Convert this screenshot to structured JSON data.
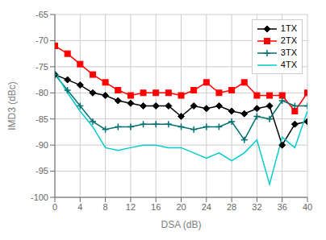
{
  "chart_data": {
    "type": "line",
    "xlabel": "DSA (dB)",
    "ylabel": "IMD3 (dBc)",
    "x": [
      0,
      2,
      4,
      6,
      8,
      10,
      12,
      14,
      16,
      18,
      20,
      22,
      24,
      26,
      28,
      30,
      32,
      34,
      36,
      38,
      40
    ],
    "xlim": [
      0,
      40
    ],
    "ylim": [
      -100,
      -65
    ],
    "xticks": [
      0,
      4,
      8,
      12,
      16,
      20,
      24,
      28,
      32,
      36,
      40
    ],
    "yticks": [
      -100,
      -95,
      -90,
      -85,
      -80,
      -75,
      -70,
      -65
    ],
    "grid": true,
    "legend": "upper right",
    "series": [
      {
        "name": "1TX",
        "color": "#000000",
        "marker": "diamond",
        "values": [
          -76.5,
          -77.5,
          -78.5,
          -80.0,
          -80.5,
          -81.5,
          -82.0,
          -82.5,
          -82.5,
          -82.5,
          -84.5,
          -82.5,
          -83.0,
          -82.5,
          -83.5,
          -84.0,
          -83.0,
          -82.5,
          -90.0,
          -86.0,
          -85.5
        ]
      },
      {
        "name": "2TX",
        "color": "#ff0000",
        "marker": "square",
        "values": [
          -71.0,
          -72.5,
          -74.5,
          -76.5,
          -78.0,
          -79.5,
          -80.5,
          -80.0,
          -80.0,
          -80.0,
          -80.5,
          -79.5,
          -78.0,
          -80.0,
          -79.5,
          -78.0,
          -80.5,
          -80.5,
          -80.5,
          -83.5,
          -80.0
        ]
      },
      {
        "name": "3TX",
        "color": "#007070",
        "marker": "plus",
        "values": [
          -76.5,
          -79.5,
          -82.5,
          -85.5,
          -87.0,
          -86.5,
          -86.5,
          -86.0,
          -86.0,
          -86.0,
          -86.5,
          -87.0,
          -86.5,
          -86.5,
          -85.5,
          -89.0,
          -84.5,
          -85.0,
          -81.5,
          -82.5,
          -82.5
        ]
      },
      {
        "name": "4TX",
        "color": "#00cccc",
        "marker": "none",
        "values": [
          -76.0,
          -80.0,
          -83.5,
          -86.5,
          -90.5,
          -91.0,
          -90.5,
          -90.0,
          -90.0,
          -90.5,
          -90.5,
          -91.5,
          -92.5,
          -91.5,
          -93.0,
          -91.5,
          -89.0,
          -97.5,
          -88.5,
          -90.5,
          -83.5
        ]
      }
    ]
  }
}
